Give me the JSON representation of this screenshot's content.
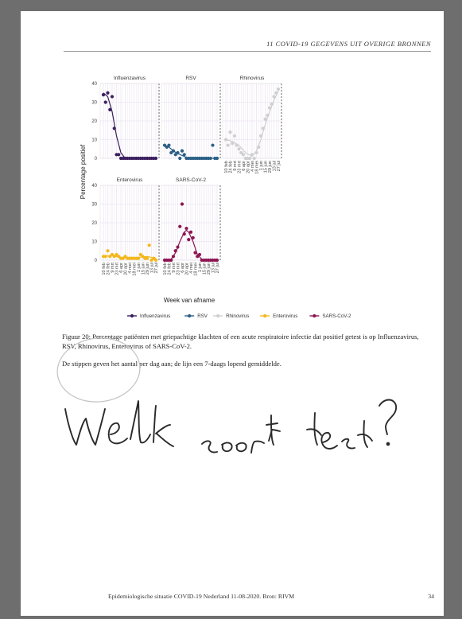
{
  "header": {
    "running_title": "11  COVID-19 GEGEVENS UIT OVERIGE BRONNEN"
  },
  "colors": {
    "Influenzavirus": "#3b1f5e",
    "RSV": "#2b5f86",
    "Rhinovirus": "#cfcfcf",
    "Enterovirus": "#f4b81c",
    "SARS-CoV-2": "#8c1552"
  },
  "chart_data": {
    "type": "scatter",
    "facet_layout": "2 rows x 3 columns, 5 panels",
    "ylabel": "Percentage positief",
    "xlabel": "Week van afname",
    "ylim": [
      0,
      40
    ],
    "yticks": [
      0,
      10,
      20,
      30,
      40
    ],
    "x_tick_labels": [
      "10 feb",
      "24 feb",
      "9 mrt",
      "23 mrt",
      "6 apr",
      "20 apr",
      "4 mei",
      "18 mei",
      "1 jun",
      "15 jun",
      "29 jun",
      "13 jul",
      "27 jul"
    ],
    "grid": true,
    "legend": "bottom",
    "series": [
      {
        "name": "Influenzavirus",
        "points": [
          {
            "x": 0,
            "y": 34
          },
          {
            "x": 1,
            "y": 30
          },
          {
            "x": 2,
            "y": 35
          },
          {
            "x": 3,
            "y": 26
          },
          {
            "x": 4,
            "y": 33
          },
          {
            "x": 5,
            "y": 16
          },
          {
            "x": 6,
            "y": 2
          },
          {
            "x": 7,
            "y": 2
          },
          {
            "x": 8,
            "y": 0
          },
          {
            "x": 9,
            "y": 0
          },
          {
            "x": 10,
            "y": 0
          },
          {
            "x": 11,
            "y": 0
          },
          {
            "x": 12,
            "y": 0
          },
          {
            "x": 13,
            "y": 0
          },
          {
            "x": 14,
            "y": 0
          },
          {
            "x": 15,
            "y": 0
          },
          {
            "x": 16,
            "y": 0
          },
          {
            "x": 17,
            "y": 0
          },
          {
            "x": 18,
            "y": 0
          },
          {
            "x": 19,
            "y": 0
          },
          {
            "x": 20,
            "y": 0
          },
          {
            "x": 21,
            "y": 0
          },
          {
            "x": 22,
            "y": 0
          },
          {
            "x": 23,
            "y": 0
          },
          {
            "x": 24,
            "y": 0
          }
        ],
        "line": [
          [
            0,
            35
          ],
          [
            2,
            33
          ],
          [
            4,
            25
          ],
          [
            6,
            12
          ],
          [
            8,
            3
          ],
          [
            10,
            0
          ],
          [
            24,
            0
          ]
        ]
      },
      {
        "name": "RSV",
        "points": [
          {
            "x": 0,
            "y": 7
          },
          {
            "x": 1,
            "y": 6
          },
          {
            "x": 2,
            "y": 7
          },
          {
            "x": 3,
            "y": 3
          },
          {
            "x": 4,
            "y": 4
          },
          {
            "x": 5,
            "y": 2
          },
          {
            "x": 6,
            "y": 3
          },
          {
            "x": 7,
            "y": 0
          },
          {
            "x": 8,
            "y": 4
          },
          {
            "x": 9,
            "y": 2
          },
          {
            "x": 10,
            "y": 0
          },
          {
            "x": 11,
            "y": 0
          },
          {
            "x": 12,
            "y": 0
          },
          {
            "x": 13,
            "y": 0
          },
          {
            "x": 14,
            "y": 0
          },
          {
            "x": 15,
            "y": 0
          },
          {
            "x": 16,
            "y": 0
          },
          {
            "x": 17,
            "y": 0
          },
          {
            "x": 18,
            "y": 0
          },
          {
            "x": 19,
            "y": 0
          },
          {
            "x": 20,
            "y": 0
          },
          {
            "x": 21,
            "y": 0
          },
          {
            "x": 22,
            "y": 7
          },
          {
            "x": 23,
            "y": 0
          },
          {
            "x": 24,
            "y": 0
          }
        ],
        "line": [
          [
            0,
            7
          ],
          [
            2,
            6
          ],
          [
            4,
            4
          ],
          [
            6,
            2.5
          ],
          [
            8,
            1.5
          ],
          [
            10,
            0.5
          ],
          [
            12,
            0
          ],
          [
            24,
            0
          ]
        ]
      },
      {
        "name": "Rhinovirus",
        "points": [
          {
            "x": 0,
            "y": 10
          },
          {
            "x": 1,
            "y": 7
          },
          {
            "x": 2,
            "y": 14
          },
          {
            "x": 3,
            "y": 8
          },
          {
            "x": 4,
            "y": 12
          },
          {
            "x": 5,
            "y": 7
          },
          {
            "x": 6,
            "y": 5
          },
          {
            "x": 7,
            "y": 3
          },
          {
            "x": 8,
            "y": 2
          },
          {
            "x": 9,
            "y": 0
          },
          {
            "x": 10,
            "y": 0
          },
          {
            "x": 11,
            "y": 0
          },
          {
            "x": 12,
            "y": 2
          },
          {
            "x": 13,
            "y": 0
          },
          {
            "x": 14,
            "y": 3
          },
          {
            "x": 15,
            "y": 6
          },
          {
            "x": 16,
            "y": 12
          },
          {
            "x": 17,
            "y": 16
          },
          {
            "x": 18,
            "y": 21
          },
          {
            "x": 19,
            "y": 23
          },
          {
            "x": 20,
            "y": 27
          },
          {
            "x": 21,
            "y": 29
          },
          {
            "x": 22,
            "y": 33
          },
          {
            "x": 23,
            "y": 35
          },
          {
            "x": 24,
            "y": 37
          }
        ],
        "line": [
          [
            0,
            10
          ],
          [
            3,
            9
          ],
          [
            6,
            7
          ],
          [
            9,
            3
          ],
          [
            12,
            1
          ],
          [
            14,
            4
          ],
          [
            16,
            10
          ],
          [
            18,
            18
          ],
          [
            20,
            25
          ],
          [
            22,
            31
          ],
          [
            24,
            36
          ]
        ]
      },
      {
        "name": "Enterovirus",
        "points": [
          {
            "x": 0,
            "y": 2
          },
          {
            "x": 1,
            "y": 2
          },
          {
            "x": 2,
            "y": 5
          },
          {
            "x": 3,
            "y": 2
          },
          {
            "x": 4,
            "y": 3
          },
          {
            "x": 5,
            "y": 2
          },
          {
            "x": 6,
            "y": 3
          },
          {
            "x": 7,
            "y": 2
          },
          {
            "x": 8,
            "y": 1
          },
          {
            "x": 9,
            "y": 1
          },
          {
            "x": 10,
            "y": 2
          },
          {
            "x": 11,
            "y": 1
          },
          {
            "x": 12,
            "y": 1
          },
          {
            "x": 13,
            "y": 1
          },
          {
            "x": 14,
            "y": 1
          },
          {
            "x": 15,
            "y": 1
          },
          {
            "x": 16,
            "y": 1
          },
          {
            "x": 17,
            "y": 3
          },
          {
            "x": 18,
            "y": 2
          },
          {
            "x": 19,
            "y": 1
          },
          {
            "x": 20,
            "y": 1
          },
          {
            "x": 21,
            "y": 8
          },
          {
            "x": 22,
            "y": 0
          },
          {
            "x": 23,
            "y": 1
          },
          {
            "x": 24,
            "y": 0
          }
        ],
        "line": [
          [
            0,
            2
          ],
          [
            4,
            2.5
          ],
          [
            8,
            1.5
          ],
          [
            12,
            1
          ],
          [
            16,
            1.5
          ],
          [
            20,
            2
          ],
          [
            24,
            1
          ]
        ]
      },
      {
        "name": "SARS-CoV-2",
        "points": [
          {
            "x": 0,
            "y": 0
          },
          {
            "x": 1,
            "y": 0
          },
          {
            "x": 2,
            "y": 0
          },
          {
            "x": 3,
            "y": 0
          },
          {
            "x": 4,
            "y": 2
          },
          {
            "x": 5,
            "y": 5
          },
          {
            "x": 6,
            "y": 7
          },
          {
            "x": 7,
            "y": 18
          },
          {
            "x": 8,
            "y": 30
          },
          {
            "x": 9,
            "y": 14
          },
          {
            "x": 10,
            "y": 17
          },
          {
            "x": 11,
            "y": 11
          },
          {
            "x": 12,
            "y": 15
          },
          {
            "x": 13,
            "y": 12
          },
          {
            "x": 14,
            "y": 4
          },
          {
            "x": 15,
            "y": 2
          },
          {
            "x": 16,
            "y": 3
          },
          {
            "x": 17,
            "y": 0
          },
          {
            "x": 18,
            "y": 0
          },
          {
            "x": 19,
            "y": 0
          },
          {
            "x": 20,
            "y": 0
          },
          {
            "x": 21,
            "y": 0
          },
          {
            "x": 22,
            "y": 0
          },
          {
            "x": 23,
            "y": 0
          },
          {
            "x": 24,
            "y": 0
          }
        ],
        "line": [
          [
            0,
            0
          ],
          [
            3,
            0.5
          ],
          [
            5,
            4
          ],
          [
            7,
            10
          ],
          [
            9,
            15
          ],
          [
            10,
            16
          ],
          [
            11,
            15
          ],
          [
            13,
            10
          ],
          [
            15,
            3
          ],
          [
            17,
            0.5
          ],
          [
            19,
            0
          ],
          [
            24,
            0
          ]
        ]
      }
    ]
  },
  "caption": {
    "figure_text": "Figuur 20: Percentage patiënten met griepachtige klachten of een acute respiratoire infectie dat positief getest is op Influenzavirus, RSV, Rhinovirus, Enterovirus of SARS-CoV-2.",
    "note": "De stippen geven het aantal per dag aan; de lijn een 7-daags lopend gemiddelde."
  },
  "handwriting": {
    "text": "Welk soort test?"
  },
  "footer": {
    "source": "Epidemiologische situatie COVID-19 Nederland 11-08-2020. Bron: RIVM",
    "page_number": "34"
  }
}
